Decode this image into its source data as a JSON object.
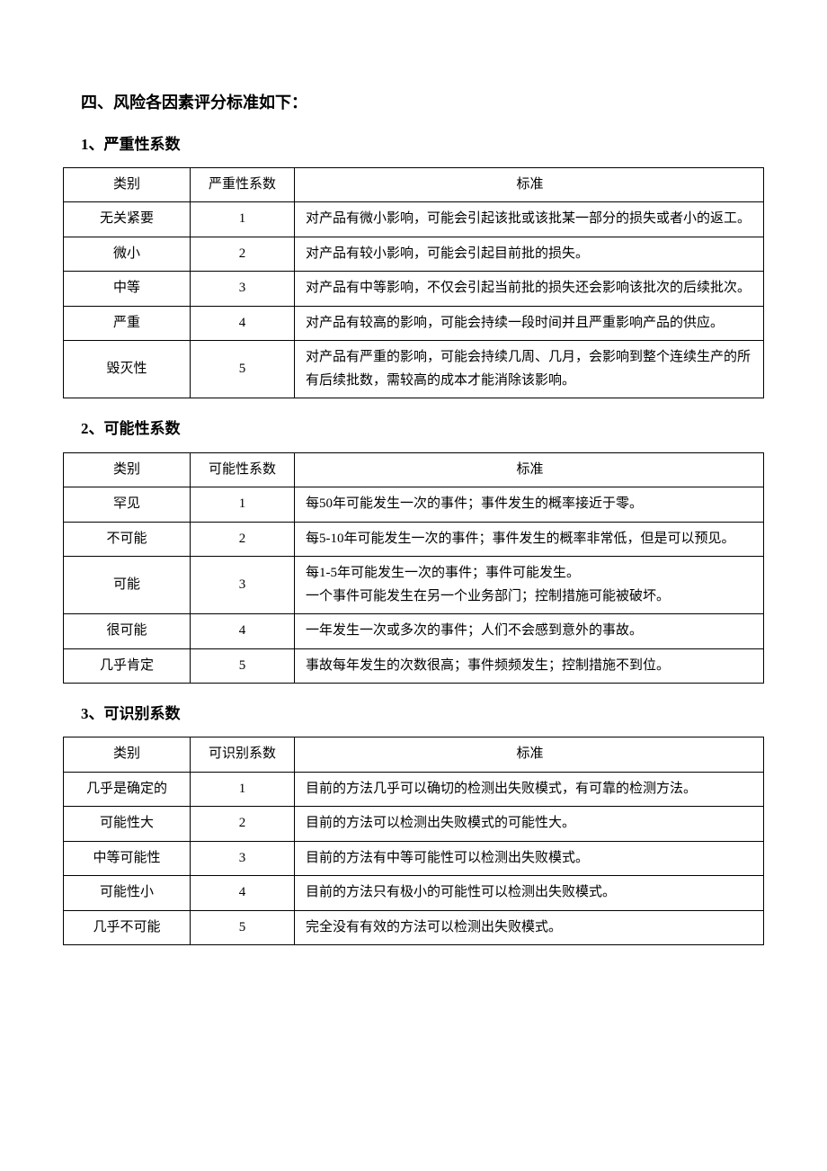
{
  "page_title": "四、风险各因素评分标准如下：",
  "tables": [
    {
      "subtitle": "1、严重性系数",
      "headers": {
        "category": "类别",
        "coefficient": "严重性系数",
        "standard": "标准"
      },
      "rows": [
        {
          "category": "无关紧要",
          "coefficient": "1",
          "standard": "对产品有微小影响，可能会引起该批或该批某一部分的损失或者小的返工。"
        },
        {
          "category": "微小",
          "coefficient": "2",
          "standard": "对产品有较小影响，可能会引起目前批的损失。"
        },
        {
          "category": "中等",
          "coefficient": "3",
          "standard": "对产品有中等影响，不仅会引起当前批的损失还会影响该批次的后续批次。"
        },
        {
          "category": "严重",
          "coefficient": "4",
          "standard": "对产品有较高的影响，可能会持续一段时间并且严重影响产品的供应。"
        },
        {
          "category": "毁灭性",
          "coefficient": "5",
          "standard": "对产品有严重的影响，可能会持续几周、几月，会影响到整个连续生产的所有后续批数，需较高的成本才能消除该影响。"
        }
      ]
    },
    {
      "subtitle": "2、可能性系数",
      "headers": {
        "category": "类别",
        "coefficient": "可能性系数",
        "standard": "标准"
      },
      "rows": [
        {
          "category": "罕见",
          "coefficient": "1",
          "standard": "每50年可能发生一次的事件；事件发生的概率接近于零。"
        },
        {
          "category": "不可能",
          "coefficient": "2",
          "standard": "每5-10年可能发生一次的事件；事件发生的概率非常低，但是可以预见。"
        },
        {
          "category": "可能",
          "coefficient": "3",
          "standard": "每1-5年可能发生一次的事件；事件可能发生。\n一个事件可能发生在另一个业务部门；控制措施可能被破坏。"
        },
        {
          "category": "很可能",
          "coefficient": "4",
          "standard": "一年发生一次或多次的事件；人们不会感到意外的事故。"
        },
        {
          "category": "几乎肯定",
          "coefficient": "5",
          "standard": "事故每年发生的次数很高；事件频频发生；控制措施不到位。"
        }
      ]
    },
    {
      "subtitle": "3、可识别系数",
      "headers": {
        "category": "类别",
        "coefficient": "可识别系数",
        "standard": "标准"
      },
      "rows": [
        {
          "category": "几乎是确定的",
          "coefficient": "1",
          "standard": "目前的方法几乎可以确切的检测出失败模式，有可靠的检测方法。"
        },
        {
          "category": "可能性大",
          "coefficient": "2",
          "standard": "目前的方法可以检测出失败模式的可能性大。"
        },
        {
          "category": "中等可能性",
          "coefficient": "3",
          "standard": "目前的方法有中等可能性可以检测出失败模式。"
        },
        {
          "category": "可能性小",
          "coefficient": "4",
          "standard": "目前的方法只有极小的可能性可以检测出失败模式。"
        },
        {
          "category": "几乎不可能",
          "coefficient": "5",
          "standard": "完全没有有效的方法可以检测出失败模式。"
        }
      ]
    }
  ]
}
